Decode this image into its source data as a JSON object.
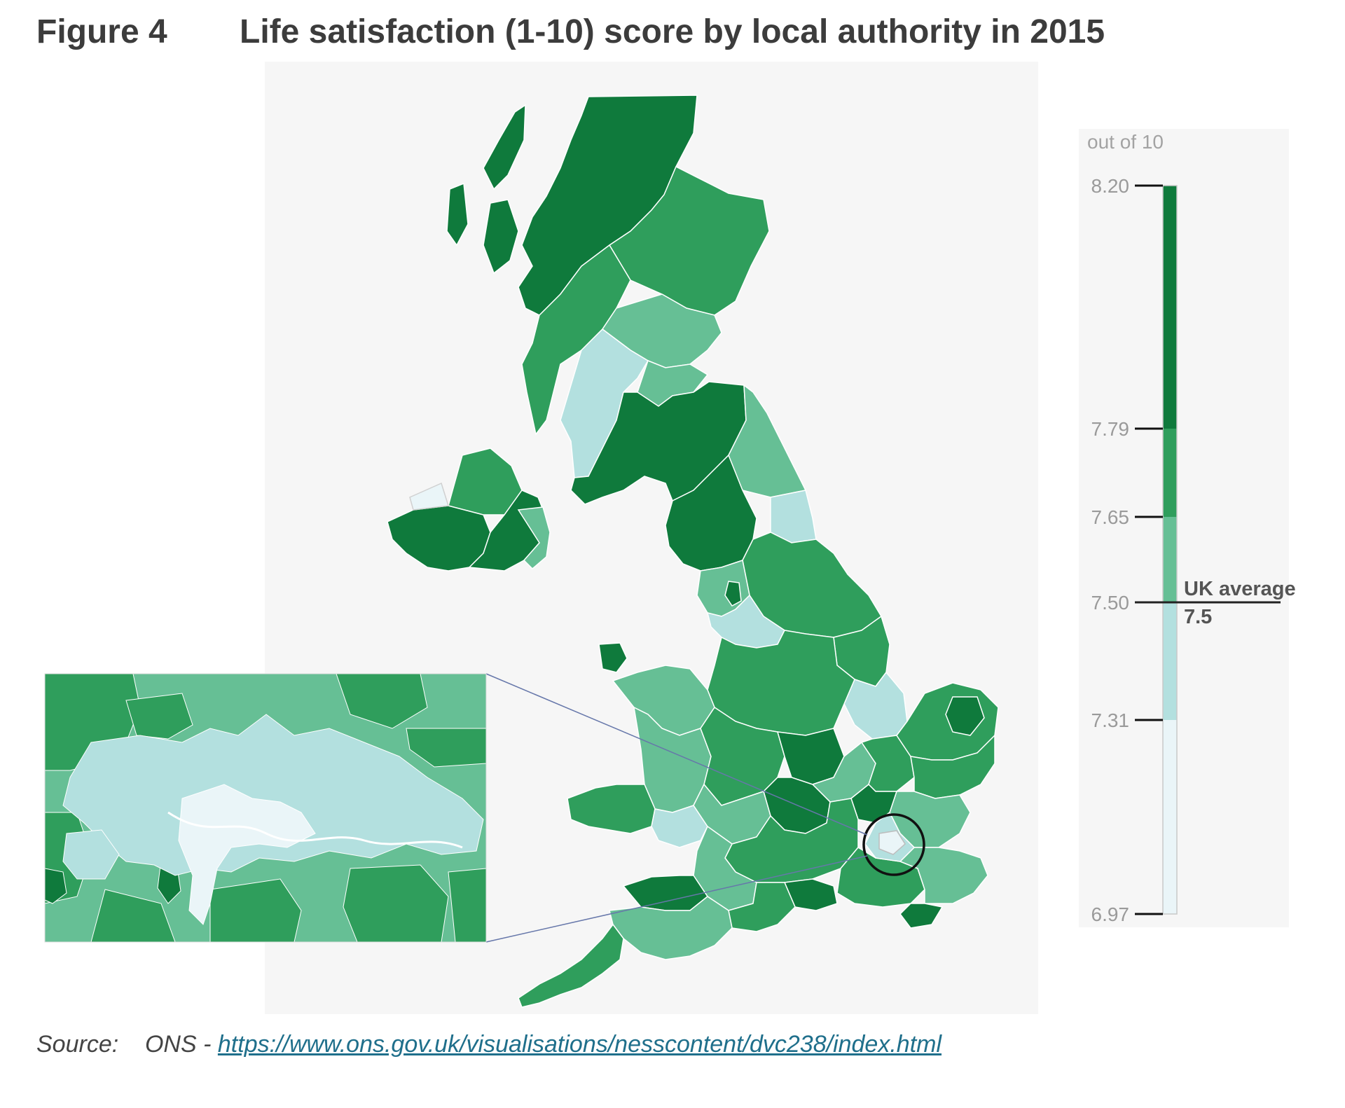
{
  "figure": {
    "label": "Figure 4",
    "title": "Life satisfaction (1-10) score by local authority in 2015"
  },
  "legend": {
    "unit": "out of 10",
    "ticks": [
      "8.20",
      "7.79",
      "7.65",
      "7.50",
      "7.31",
      "6.97"
    ],
    "bands": [
      {
        "from": 7.79,
        "to": 8.2,
        "color": "#0f7a3c"
      },
      {
        "from": 7.65,
        "to": 7.79,
        "color": "#2f9e5c"
      },
      {
        "from": 7.5,
        "to": 7.65,
        "color": "#66bf95"
      },
      {
        "from": 7.31,
        "to": 7.5,
        "color": "#b3e0df"
      },
      {
        "from": 6.97,
        "to": 7.31,
        "color": "#eaf5f8"
      }
    ],
    "uk_average_label": "UK average",
    "uk_average_value": "7.5"
  },
  "source": {
    "label": "Source:",
    "org": "ONS -",
    "url": "https://www.ons.gov.uk/visualisations/nesscontent/dvc238/index.html"
  }
}
